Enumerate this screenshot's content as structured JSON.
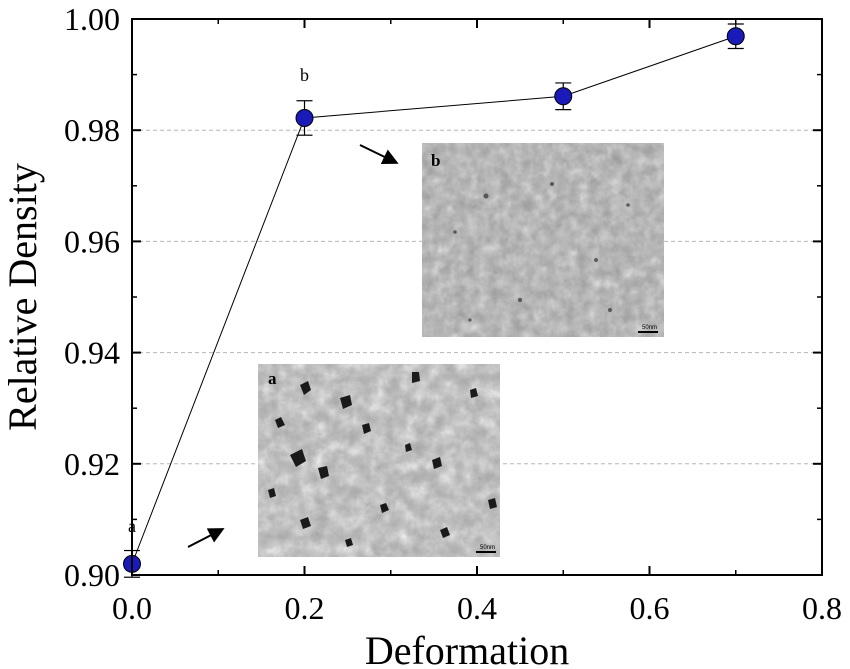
{
  "chart_data": {
    "type": "scatter",
    "xlabel": "Deformation",
    "ylabel": "Relative Density",
    "xlim": [
      0.0,
      0.8
    ],
    "ylim": [
      0.9,
      1.0
    ],
    "x_ticks": [
      "0.0",
      "0.2",
      "0.4",
      "0.6",
      "0.8"
    ],
    "y_ticks": [
      "0.90",
      "0.92",
      "0.94",
      "0.96",
      "0.98",
      "1.00"
    ],
    "grid": "horizontal dashed",
    "series": [
      {
        "x": [
          0.0,
          0.2,
          0.5,
          0.7
        ],
        "y": [
          0.902,
          0.9822,
          0.9861,
          0.9969
        ],
        "yerr": [
          0.0024,
          0.0031,
          0.0024,
          0.0022
        ],
        "color": "#1a1ab8",
        "marker": "circle",
        "connected": true
      }
    ],
    "point_labels": [
      {
        "text": "a",
        "x": 0.0
      },
      {
        "text": "b",
        "x": 0.2
      }
    ],
    "insets": [
      {
        "label": "b",
        "scale_bar": "50nm",
        "points_to_x": 0.2,
        "description": "micrograph"
      },
      {
        "label": "a",
        "scale_bar": "50nm",
        "points_to_x": 0.0,
        "description": "micrograph"
      }
    ]
  }
}
